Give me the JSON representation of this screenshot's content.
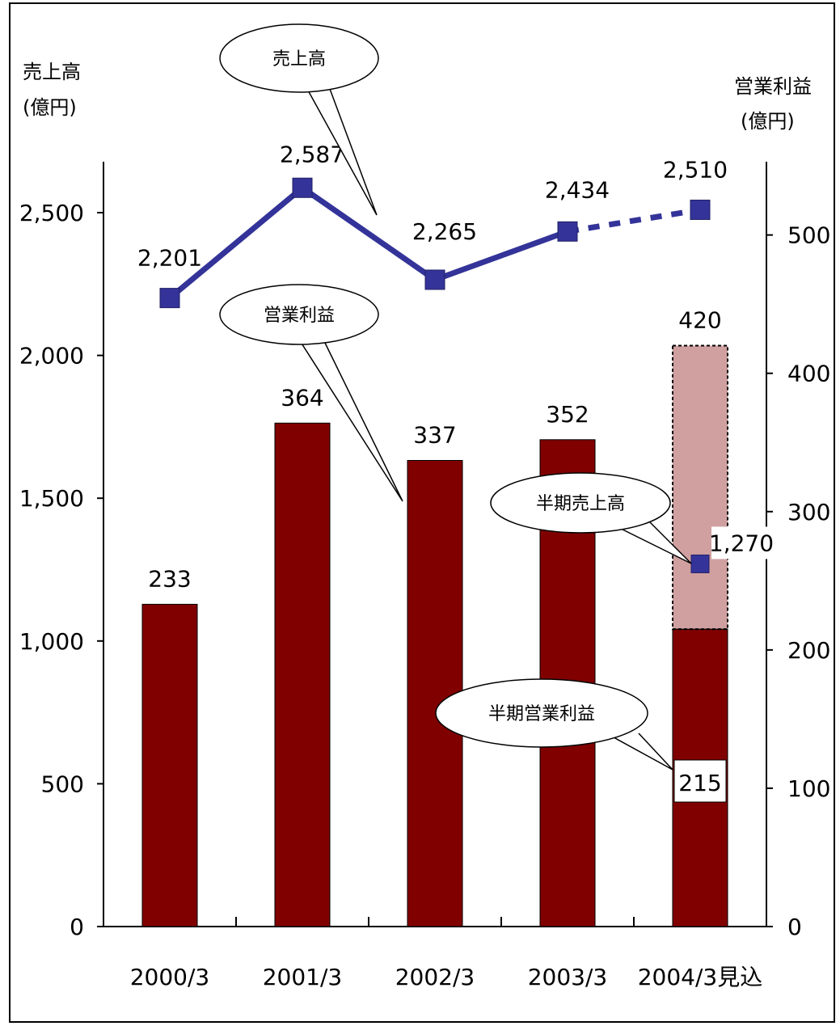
{
  "chart_data": {
    "type": "bar",
    "categories": [
      "2000/3",
      "2001/3",
      "2002/3",
      "2003/3",
      "2004/3見込"
    ],
    "left_axis": {
      "label_line1": "売上高",
      "label_line2": "(億円)",
      "range": [
        0,
        2700
      ],
      "ticks": [
        "0",
        "500",
        "1,000",
        "1,500",
        "2,000",
        "2,500"
      ],
      "tick_values": [
        0,
        500,
        1000,
        1500,
        2000,
        2500
      ]
    },
    "right_axis": {
      "label_line1": "営業利益",
      "label_line2": "(億円)",
      "range": [
        0,
        540
      ],
      "ticks": [
        "0",
        "100",
        "200",
        "300",
        "400",
        "500"
      ],
      "tick_values": [
        0,
        100,
        200,
        300,
        400,
        500
      ]
    },
    "series": [
      {
        "name": "営業利益",
        "type": "bar",
        "axis": "right",
        "color": "#800000",
        "forecast_color": "#d0a0a0",
        "values": [
          233,
          364,
          337,
          352,
          420
        ],
        "labels": [
          "233",
          "364",
          "337",
          "352",
          "420"
        ]
      },
      {
        "name": "売上高",
        "type": "line",
        "axis": "left",
        "color": "#333399",
        "values": [
          2201,
          2587,
          2265,
          2434,
          2510
        ],
        "labels": [
          "2,201",
          "2,587",
          "2,265",
          "2,434",
          "2,510"
        ],
        "forecast_from_index": 3
      }
    ],
    "half_year": {
      "operating_profit": {
        "name": "半期営業利益",
        "value": 215,
        "label": "215",
        "category_index": 4
      },
      "sales": {
        "name": "半期売上高",
        "value": 1270,
        "label": "1,270",
        "category_index": 4
      }
    },
    "callouts": [
      "売上高",
      "営業利益",
      "半期売上高",
      "半期営業利益"
    ]
  }
}
